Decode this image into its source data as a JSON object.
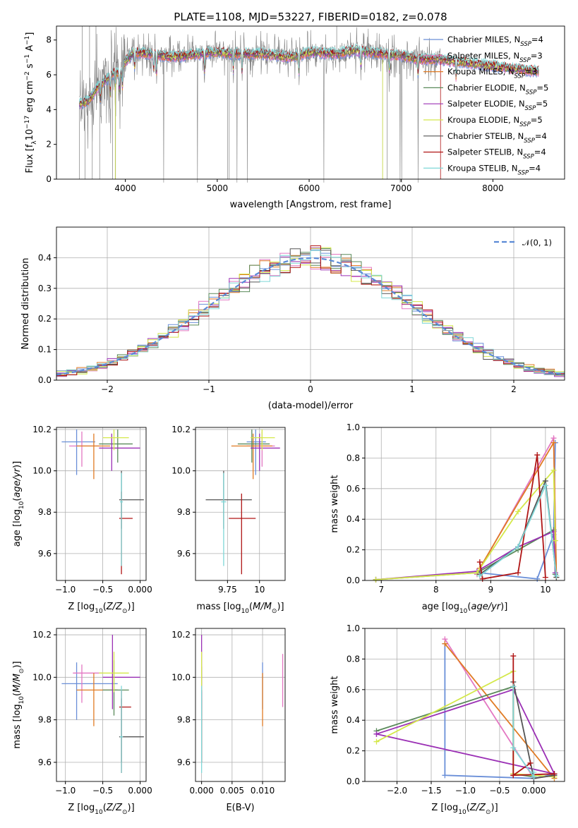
{
  "title": "PLATE=1108, MJD=53227, FIBERID=0182, z=0.078",
  "colors": {
    "chabrier_miles": "#6a8fd8",
    "salpeter_miles": "#e377c2",
    "kroupa_miles": "#e07b24",
    "chabrier_elodie": "#5a8a5a",
    "salpeter_elodie": "#9b30b5",
    "kroupa_elodie": "#d4e84a",
    "chabrier_stelib": "#555555",
    "salpeter_stelib": "#b01515",
    "kroupa_stelib": "#7fd7d7",
    "data": "#808080",
    "gauss": "#5b8ad6"
  },
  "legend_spec": [
    {
      "pre": "Chabrier MILES, N",
      "sub": "SSP",
      "post": "=4"
    },
    {
      "pre": "Salpeter MILES, N",
      "sub": "SSP",
      "post": "=3"
    },
    {
      "pre": "Kroupa MILES, N",
      "sub": "SSP",
      "post": "=3"
    },
    {
      "pre": "Chabrier ELODIE, N",
      "sub": "SSP",
      "post": "=5"
    },
    {
      "pre": "Salpeter ELODIE, N",
      "sub": "SSP",
      "post": "=5"
    },
    {
      "pre": "Kroupa ELODIE, N",
      "sub": "SSP",
      "post": "=5"
    },
    {
      "pre": "Chabrier STELIB, N",
      "sub": "SSP",
      "post": "=4"
    },
    {
      "pre": "Salpeter STELIB, N",
      "sub": "SSP",
      "post": "=4"
    },
    {
      "pre": "Kroupa STELIB, N",
      "sub": "SSP",
      "post": "=4"
    }
  ],
  "hist_legend": "𝒩(0, 1)",
  "chart_data": [
    {
      "id": "spectrum",
      "type": "line",
      "title": "PLATE=1108, MJD=53227, FIBERID=0182, z=0.078",
      "xlabel": "wavelength [Angstrom, rest frame]",
      "ylabel": "Flux [fλ10⁻¹⁷ erg cm⁻² s⁻¹ A⁻¹]",
      "xlim": [
        3250,
        8780
      ],
      "ylim": [
        0,
        8.8
      ],
      "xticks": [
        4000,
        5000,
        6000,
        7000,
        8000
      ],
      "yticks": [
        0,
        2,
        4,
        6,
        8
      ],
      "continuum": {
        "x": [
          3500,
          3600,
          3700,
          3900,
          3950,
          4000,
          4100,
          4300,
          4500,
          4800,
          5000,
          5200,
          5500,
          5800,
          6000,
          6300,
          6500,
          6800,
          7000,
          7200,
          7400,
          7700,
          8000,
          8300,
          8500
        ],
        "y": [
          4.3,
          4.5,
          5.3,
          6.2,
          6.0,
          6.8,
          7.3,
          7.2,
          7.0,
          7.2,
          7.3,
          7.2,
          7.2,
          7.0,
          7.3,
          7.2,
          7.4,
          7.2,
          7.1,
          6.9,
          6.9,
          6.7,
          6.5,
          6.3,
          6.2
        ]
      },
      "absorption_lines": [
        3730,
        3835,
        3889,
        3934,
        3969,
        4102,
        4308,
        4340,
        4861,
        5175,
        5270,
        5890,
        6563,
        6870,
        7186,
        7600
      ]
    },
    {
      "id": "residuals",
      "type": "bar",
      "xlabel": "(data-model)/error",
      "ylabel": "Normed distribution",
      "xlim": [
        -2.5,
        2.5
      ],
      "ylim": [
        0,
        0.5
      ],
      "xticks": [
        -2,
        -1,
        0,
        1,
        2
      ],
      "yticks": [
        0.0,
        0.1,
        0.2,
        0.3,
        0.4
      ],
      "bin_width": 0.1,
      "legend": "𝒩(0, 1)"
    },
    {
      "id": "age_vs_Z",
      "type": "scatter",
      "xlabel": "Z [log10(Z/Z⊙)]",
      "ylabel": "age  [log10(age/yr)]",
      "xlim": [
        -1.12,
        0.08
      ],
      "ylim": [
        9.47,
        10.21
      ],
      "xticks": [
        -1.0,
        -0.5,
        0.0
      ],
      "yticks": [
        9.6,
        9.8,
        10.0,
        10.2
      ],
      "points": [
        {
          "s": "chabrier_miles",
          "x": -0.85,
          "y": 10.14,
          "xe": [
            -1.05,
            -0.6
          ],
          "ye": [
            9.98,
            10.2
          ]
        },
        {
          "s": "salpeter_miles",
          "x": -0.78,
          "y": 10.12,
          "xe": [
            -0.95,
            -0.55
          ],
          "ye": [
            10.02,
            10.19
          ]
        },
        {
          "s": "kroupa_miles",
          "x": -0.62,
          "y": 10.12,
          "xe": [
            -0.85,
            -0.4
          ],
          "ye": [
            9.96,
            10.18
          ]
        },
        {
          "s": "chabrier_elodie",
          "x": -0.3,
          "y": 10.13,
          "xe": [
            -0.55,
            -0.1
          ],
          "ye": [
            10.04,
            10.2
          ]
        },
        {
          "s": "salpeter_elodie",
          "x": -0.38,
          "y": 10.11,
          "xe": [
            -0.55,
            0.0
          ],
          "ye": [
            10.0,
            10.18
          ]
        },
        {
          "s": "kroupa_elodie",
          "x": -0.35,
          "y": 10.16,
          "xe": [
            -0.5,
            -0.15
          ],
          "ye": [
            10.1,
            10.2
          ]
        },
        {
          "s": "chabrier_stelib",
          "x": -0.25,
          "y": 9.86,
          "xe": [
            -0.28,
            0.05
          ],
          "ye": [
            9.72,
            10.0
          ]
        },
        {
          "s": "salpeter_stelib",
          "x": -0.25,
          "y": 9.77,
          "xe": [
            -0.28,
            -0.1
          ],
          "ye": [
            9.5,
            9.9
          ]
        },
        {
          "s": "kroupa_stelib",
          "x": -0.25,
          "y": 9.85,
          "xe": [
            -0.27,
            -0.23
          ],
          "ye": [
            9.54,
            9.99
          ]
        }
      ]
    },
    {
      "id": "age_vs_mass",
      "type": "scatter",
      "xlabel": "mass [log10(M/M⊙)]",
      "ylabel": "",
      "xlim": [
        9.5,
        10.2
      ],
      "ylim": [
        9.47,
        10.21
      ],
      "xticks": [
        9.75,
        10.0
      ],
      "yticks": [
        9.6,
        9.8,
        10.0,
        10.2
      ],
      "points": [
        {
          "s": "chabrier_miles",
          "x": 9.97,
          "y": 10.14,
          "xe": [
            9.9,
            10.05
          ],
          "ye": [
            9.98,
            10.2
          ]
        },
        {
          "s": "salpeter_miles",
          "x": 10.02,
          "y": 10.12,
          "xe": [
            9.9,
            10.12
          ],
          "ye": [
            10.02,
            10.19
          ]
        },
        {
          "s": "kroupa_miles",
          "x": 9.95,
          "y": 10.12,
          "xe": [
            9.78,
            10.1
          ],
          "ye": [
            9.96,
            10.18
          ]
        },
        {
          "s": "chabrier_elodie",
          "x": 9.94,
          "y": 10.13,
          "xe": [
            9.83,
            10.08
          ],
          "ye": [
            10.04,
            10.2
          ]
        },
        {
          "s": "salpeter_elodie",
          "x": 10.0,
          "y": 10.11,
          "xe": [
            9.93,
            10.16
          ],
          "ye": [
            10.0,
            10.18
          ]
        },
        {
          "s": "kroupa_elodie",
          "x": 10.02,
          "y": 10.16,
          "xe": [
            9.93,
            10.12
          ],
          "ye": [
            10.1,
            10.2
          ]
        },
        {
          "s": "chabrier_stelib",
          "x": 9.72,
          "y": 9.86,
          "xe": [
            9.58,
            9.94
          ],
          "ye": [
            9.72,
            10.0
          ]
        },
        {
          "s": "salpeter_stelib",
          "x": 9.86,
          "y": 9.77,
          "xe": [
            9.76,
            9.97
          ],
          "ye": [
            9.5,
            9.89
          ]
        },
        {
          "s": "kroupa_stelib",
          "x": 9.72,
          "y": 9.85,
          "xe": [
            9.7,
            9.74
          ],
          "ye": [
            9.54,
            9.99
          ]
        }
      ]
    },
    {
      "id": "mw_vs_age",
      "type": "line",
      "xlabel": "age  [log10(age/yr)]",
      "ylabel": "mass weight",
      "xlim": [
        6.7,
        10.35
      ],
      "ylim": [
        0,
        1.0
      ],
      "xticks": [
        7,
        8,
        9,
        10
      ],
      "yticks": [
        0.0,
        0.2,
        0.4,
        0.6,
        0.8,
        1.0
      ],
      "series": [
        {
          "s": "chabrier_miles",
          "x": [
            8.8,
            9.85,
            10.15,
            10.18
          ],
          "y": [
            0.05,
            0.01,
            0.3,
            0.9
          ]
        },
        {
          "s": "salpeter_miles",
          "x": [
            8.75,
            10.15,
            10.2
          ],
          "y": [
            0.04,
            0.93,
            0.02
          ]
        },
        {
          "s": "kroupa_miles",
          "x": [
            8.8,
            10.15,
            10.2
          ],
          "y": [
            0.08,
            0.9,
            0.02
          ]
        },
        {
          "s": "chabrier_elodie",
          "x": [
            6.9,
            8.75,
            9.5,
            10.15,
            10.18
          ],
          "y": [
            0.005,
            0.05,
            0.2,
            0.33,
            0.04
          ]
        },
        {
          "s": "salpeter_elodie",
          "x": [
            6.9,
            8.75,
            9.5,
            10.15,
            10.18
          ],
          "y": [
            0.005,
            0.06,
            0.22,
            0.32,
            0.05
          ]
        },
        {
          "s": "kroupa_elodie",
          "x": [
            6.9,
            8.75,
            9.5,
            10.15,
            10.18
          ],
          "y": [
            0.005,
            0.05,
            0.45,
            0.72,
            0.26
          ]
        },
        {
          "s": "chabrier_stelib",
          "x": [
            8.8,
            9.5,
            10.0,
            10.2
          ],
          "y": [
            0.04,
            0.22,
            0.65,
            0.02
          ]
        },
        {
          "s": "salpeter_stelib",
          "x": [
            8.8,
            8.85,
            9.5,
            9.85,
            10.0
          ],
          "y": [
            0.12,
            0.01,
            0.05,
            0.82,
            0.02
          ]
        },
        {
          "s": "kroupa_stelib",
          "x": [
            8.8,
            9.5,
            10.0,
            10.2
          ],
          "y": [
            0.03,
            0.22,
            0.62,
            0.03
          ]
        }
      ]
    },
    {
      "id": "mass_vs_Z",
      "type": "scatter",
      "xlabel": "Z [log10(Z/Z⊙)]",
      "ylabel": "mass [log10(M/M⊙)]",
      "xlim": [
        -1.12,
        0.08
      ],
      "ylim": [
        9.51,
        10.23
      ],
      "xticks": [
        -1.0,
        -0.5,
        0.0
      ],
      "yticks": [
        9.6,
        9.8,
        10.0,
        10.2
      ],
      "points": [
        {
          "s": "chabrier_miles",
          "x": -0.85,
          "y": 9.97,
          "xe": [
            -1.05,
            -0.3
          ],
          "ye": [
            9.8,
            10.07
          ]
        },
        {
          "s": "salpeter_miles",
          "x": -0.78,
          "y": 10.02,
          "xe": [
            -0.9,
            -0.5
          ],
          "ye": [
            9.88,
            10.06
          ]
        },
        {
          "s": "kroupa_miles",
          "x": -0.62,
          "y": 9.94,
          "xe": [
            -0.85,
            -0.3
          ],
          "ye": [
            9.77,
            10.02
          ]
        },
        {
          "s": "chabrier_elodie",
          "x": -0.35,
          "y": 9.94,
          "xe": [
            -0.5,
            -0.15
          ],
          "ye": [
            9.82,
            10.08
          ]
        },
        {
          "s": "salpeter_elodie",
          "x": -0.37,
          "y": 10.0,
          "xe": [
            -0.5,
            0.0
          ],
          "ye": [
            9.85,
            10.2
          ]
        },
        {
          "s": "kroupa_elodie",
          "x": -0.35,
          "y": 10.02,
          "xe": [
            -0.55,
            -0.15
          ],
          "ye": [
            9.93,
            10.12
          ]
        },
        {
          "s": "chabrier_stelib",
          "x": -0.25,
          "y": 9.72,
          "xe": [
            -0.28,
            0.05
          ],
          "ye": [
            9.6,
            9.9
          ]
        },
        {
          "s": "salpeter_stelib",
          "x": -0.25,
          "y": 9.86,
          "xe": [
            -0.28,
            -0.12
          ],
          "ye": [
            9.55,
            9.94
          ]
        },
        {
          "s": "kroupa_stelib",
          "x": -0.25,
          "y": 9.72,
          "xe": [
            -0.27,
            -0.23
          ],
          "ye": [
            9.55,
            9.96
          ]
        }
      ]
    },
    {
      "id": "mass_vs_ebv",
      "type": "scatter",
      "xlabel": "E(B-V)",
      "ylabel": "",
      "xlim": [
        -0.001,
        0.0137
      ],
      "ylim": [
        9.51,
        10.23
      ],
      "xticks": [
        0.0,
        0.005,
        0.01
      ],
      "yticks": [
        9.6,
        9.8,
        10.0,
        10.2
      ],
      "points": [
        {
          "s": "chabrier_miles",
          "x": 0.01,
          "y": 9.97,
          "xe": [
            0.01,
            0.01
          ],
          "ye": [
            9.85,
            10.07
          ]
        },
        {
          "s": "salpeter_miles",
          "x": 0.0133,
          "y": 10.02,
          "xe": [
            0.0133,
            0.0133
          ],
          "ye": [
            9.86,
            10.11
          ]
        },
        {
          "s": "kroupa_miles",
          "x": 0.01,
          "y": 9.94,
          "xe": [
            0.01,
            0.01
          ],
          "ye": [
            9.77,
            10.02
          ]
        },
        {
          "s": "chabrier_elodie",
          "x": 0.0,
          "y": 9.94,
          "xe": [
            0.0,
            0.0
          ],
          "ye": [
            9.82,
            10.05
          ]
        },
        {
          "s": "salpeter_elodie",
          "x": 0.0,
          "y": 10.0,
          "xe": [
            0.0,
            0.0
          ],
          "ye": [
            9.85,
            10.2
          ]
        },
        {
          "s": "kroupa_elodie",
          "x": 0.0,
          "y": 10.02,
          "xe": [
            0.0,
            0.0
          ],
          "ye": [
            9.93,
            10.12
          ]
        },
        {
          "s": "chabrier_stelib",
          "x": 0.0,
          "y": 9.72,
          "xe": [
            0.0,
            0.0
          ],
          "ye": [
            9.6,
            9.9
          ]
        },
        {
          "s": "salpeter_stelib",
          "x": 0.0,
          "y": 9.86,
          "xe": [
            0.0,
            0.0
          ],
          "ye": [
            9.6,
            9.94
          ]
        },
        {
          "s": "kroupa_stelib",
          "x": 0.0,
          "y": 9.72,
          "xe": [
            0.0,
            0.0
          ],
          "ye": [
            9.55,
            9.96
          ]
        }
      ]
    },
    {
      "id": "mw_vs_Z",
      "type": "line",
      "xlabel": "Z [log10(Z/Z⊙)]",
      "ylabel": "mass weight",
      "xlim": [
        -2.47,
        0.45
      ],
      "ylim": [
        0,
        1.0
      ],
      "xticks": [
        -2.0,
        -1.5,
        -1.0,
        -0.5,
        0.0
      ],
      "yticks": [
        0.0,
        0.2,
        0.4,
        0.6,
        0.8,
        1.0
      ],
      "series": [
        {
          "s": "chabrier_miles",
          "x": [
            -1.3,
            -1.3,
            0.0,
            0.3
          ],
          "y": [
            0.9,
            0.04,
            0.02,
            0.05
          ]
        },
        {
          "s": "salpeter_miles",
          "x": [
            -1.3,
            0.0,
            0.3
          ],
          "y": [
            0.93,
            0.02,
            0.04
          ]
        },
        {
          "s": "kroupa_miles",
          "x": [
            -1.3,
            0.3
          ],
          "y": [
            0.9,
            0.02
          ]
        },
        {
          "s": "chabrier_elodie",
          "x": [
            -2.3,
            -0.3,
            -0.3,
            0.0
          ],
          "y": [
            0.33,
            0.62,
            0.05,
            0.03
          ]
        },
        {
          "s": "salpeter_elodie",
          "x": [
            -2.3,
            -0.3,
            0.3,
            -2.3
          ],
          "y": [
            0.31,
            0.6,
            0.05,
            0.31
          ]
        },
        {
          "s": "kroupa_elodie",
          "x": [
            -2.3,
            -0.3,
            -0.3,
            0.3
          ],
          "y": [
            0.26,
            0.72,
            0.05,
            0.03
          ]
        },
        {
          "s": "chabrier_stelib",
          "x": [
            -0.3,
            0.0,
            0.3
          ],
          "y": [
            0.65,
            0.02,
            0.04
          ]
        },
        {
          "s": "salpeter_stelib",
          "x": [
            -0.3,
            -0.3,
            -0.05,
            -0.3,
            0.3
          ],
          "y": [
            0.82,
            0.04,
            0.12,
            0.04,
            0.05
          ]
        },
        {
          "s": "kroupa_stelib",
          "x": [
            -0.3,
            -0.3,
            0.0,
            0.0
          ],
          "y": [
            0.62,
            0.22,
            0.03,
            0.06
          ]
        }
      ]
    }
  ]
}
